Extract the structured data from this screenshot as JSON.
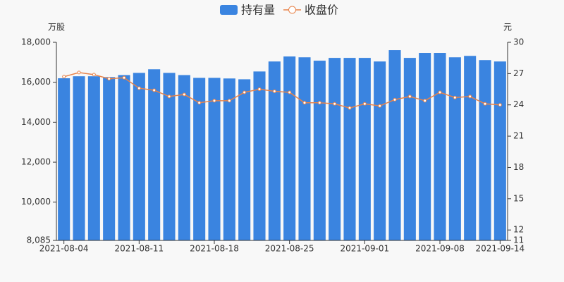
{
  "chart_data": {
    "type": "bar",
    "categories": [
      "2021-08-04",
      null,
      null,
      null,
      null,
      "2021-08-11",
      null,
      null,
      null,
      null,
      "2021-08-18",
      null,
      null,
      null,
      null,
      "2021-08-25",
      null,
      null,
      null,
      null,
      "2021-09-01",
      null,
      null,
      null,
      null,
      "2021-09-08",
      null,
      null,
      null,
      "2021-09-14"
    ],
    "series": [
      {
        "name": "持有量",
        "type": "bar",
        "color": "#3a84e0",
        "values": [
          16200,
          16300,
          16300,
          16260,
          16360,
          16470,
          16650,
          16470,
          16360,
          16220,
          16220,
          16190,
          16150,
          16540,
          17040,
          17290,
          17250,
          17080,
          17220,
          17220,
          17220,
          17040,
          17610,
          17220,
          17470,
          17470,
          17250,
          17320,
          17110,
          17040
        ]
      },
      {
        "name": "收盘价",
        "type": "line",
        "axis": "y2",
        "color": "#e8834a",
        "values": [
          26.7,
          27.1,
          26.9,
          26.5,
          26.6,
          25.6,
          25.4,
          24.8,
          25.0,
          24.2,
          24.4,
          24.4,
          25.2,
          25.5,
          25.3,
          25.2,
          24.2,
          24.2,
          24.1,
          23.7,
          24.1,
          23.9,
          24.5,
          24.8,
          24.4,
          25.2,
          24.7,
          24.8,
          24.1,
          24.0
        ]
      }
    ],
    "y_label": "万股",
    "y2_label": "元",
    "ylim": [
      8085,
      18000
    ],
    "yticks": [
      {
        "value": 8085,
        "label": "8,085"
      },
      {
        "value": 10000,
        "label": "10,000"
      },
      {
        "value": 12000,
        "label": "12,000"
      },
      {
        "value": 14000,
        "label": "14,000"
      },
      {
        "value": 16000,
        "label": "16,000"
      },
      {
        "value": 18000,
        "label": "18,000"
      }
    ],
    "y2lim": [
      11,
      30
    ],
    "y2ticks": [
      11,
      12,
      15,
      18,
      21,
      24,
      27,
      30
    ],
    "grid": false
  }
}
